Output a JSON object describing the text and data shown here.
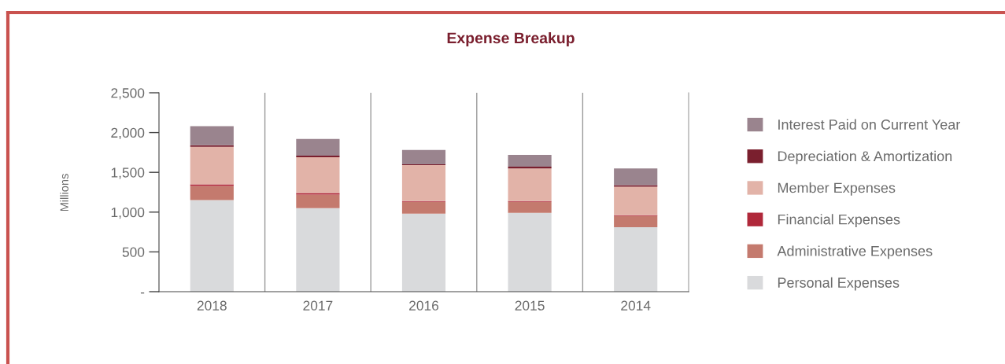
{
  "chart_data": {
    "type": "bar",
    "title": "Expense Breakup",
    "ylabel": "Millions",
    "categories": [
      "2018",
      "2017",
      "2016",
      "2015",
      "2014"
    ],
    "stacked": true,
    "series": [
      {
        "name": "Personal Expenses",
        "color": "#d9dadc",
        "values": [
          1150,
          1050,
          980,
          990,
          810
        ]
      },
      {
        "name": "Administrative Expenses",
        "color": "#c47a6e",
        "values": [
          180,
          170,
          150,
          140,
          140
        ]
      },
      {
        "name": "Financial Expenses",
        "color": "#b0283a",
        "values": [
          20,
          20,
          10,
          10,
          10
        ]
      },
      {
        "name": "Member Expenses",
        "color": "#e2b3a8",
        "values": [
          470,
          450,
          450,
          410,
          360
        ]
      },
      {
        "name": "Depreciation & Amortization",
        "color": "#7a1f2e",
        "values": [
          20,
          20,
          10,
          20,
          20
        ]
      },
      {
        "name": "Interest Paid on Current Year",
        "color": "#9a848e",
        "values": [
          240,
          210,
          180,
          150,
          210
        ]
      }
    ],
    "ylim": [
      0,
      2500
    ],
    "yticks": [
      {
        "value": 0,
        "label": "-"
      },
      {
        "value": 500,
        "label": "500"
      },
      {
        "value": 1000,
        "label": "1,000"
      },
      {
        "value": 1500,
        "label": "1,500"
      },
      {
        "value": 2000,
        "label": "2,000"
      },
      {
        "value": 2500,
        "label": "2,500"
      }
    ],
    "grid": "x",
    "legend": "right"
  }
}
